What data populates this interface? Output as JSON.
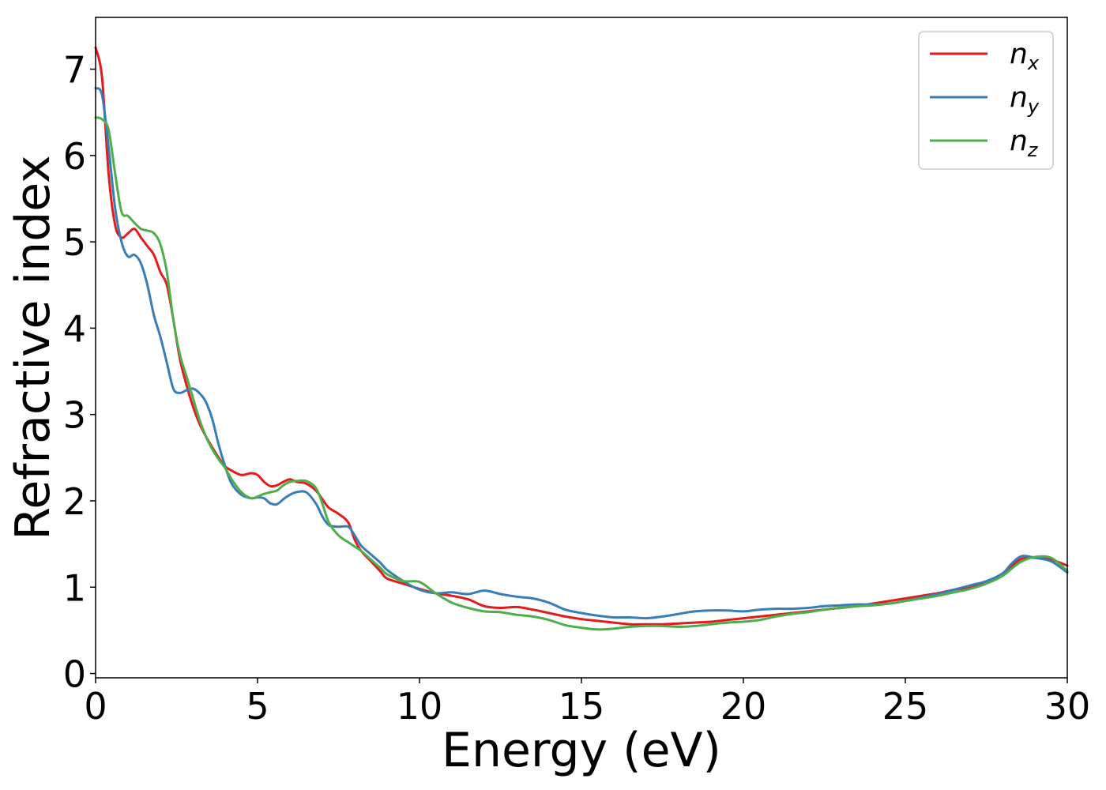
{
  "chart_data": {
    "type": "line",
    "title": "",
    "xlabel": "Energy (eV)",
    "ylabel": "Refractive index",
    "xlim": [
      0,
      30
    ],
    "ylim": [
      -0.05,
      7.6
    ],
    "xticks": [
      0,
      5,
      10,
      15,
      20,
      25,
      30
    ],
    "yticks": [
      0,
      1,
      2,
      3,
      4,
      5,
      6,
      7
    ],
    "grid": false,
    "legend_position": "top-right",
    "series": [
      {
        "name": "n",
        "subscript": "x",
        "color": "#e41a1c",
        "points": [
          [
            0,
            7.25
          ],
          [
            0.2,
            6.9
          ],
          [
            0.4,
            5.8
          ],
          [
            0.6,
            5.2
          ],
          [
            0.8,
            5.05
          ],
          [
            1.0,
            5.1
          ],
          [
            1.2,
            5.15
          ],
          [
            1.4,
            5.05
          ],
          [
            1.6,
            4.95
          ],
          [
            1.8,
            4.85
          ],
          [
            2.0,
            4.65
          ],
          [
            2.2,
            4.5
          ],
          [
            2.4,
            4.1
          ],
          [
            2.6,
            3.65
          ],
          [
            2.8,
            3.35
          ],
          [
            3.0,
            3.1
          ],
          [
            3.2,
            2.9
          ],
          [
            3.4,
            2.75
          ],
          [
            3.6,
            2.62
          ],
          [
            3.8,
            2.5
          ],
          [
            4.0,
            2.4
          ],
          [
            4.2,
            2.35
          ],
          [
            4.5,
            2.3
          ],
          [
            4.8,
            2.32
          ],
          [
            5.0,
            2.3
          ],
          [
            5.2,
            2.22
          ],
          [
            5.4,
            2.17
          ],
          [
            5.6,
            2.18
          ],
          [
            5.8,
            2.22
          ],
          [
            6.0,
            2.25
          ],
          [
            6.2,
            2.22
          ],
          [
            6.5,
            2.2
          ],
          [
            6.8,
            2.12
          ],
          [
            7.0,
            2.02
          ],
          [
            7.2,
            1.92
          ],
          [
            7.5,
            1.85
          ],
          [
            7.8,
            1.75
          ],
          [
            8.0,
            1.55
          ],
          [
            8.2,
            1.42
          ],
          [
            8.5,
            1.3
          ],
          [
            8.8,
            1.18
          ],
          [
            9.0,
            1.1
          ],
          [
            9.5,
            1.04
          ],
          [
            10.0,
            0.98
          ],
          [
            10.5,
            0.93
          ],
          [
            11.0,
            0.9
          ],
          [
            11.5,
            0.86
          ],
          [
            12.0,
            0.78
          ],
          [
            12.5,
            0.76
          ],
          [
            13.0,
            0.77
          ],
          [
            13.5,
            0.74
          ],
          [
            14.0,
            0.7
          ],
          [
            14.5,
            0.66
          ],
          [
            15.0,
            0.63
          ],
          [
            15.5,
            0.61
          ],
          [
            16.0,
            0.59
          ],
          [
            16.5,
            0.57
          ],
          [
            17.0,
            0.57
          ],
          [
            17.5,
            0.57
          ],
          [
            18.0,
            0.58
          ],
          [
            18.5,
            0.59
          ],
          [
            19.0,
            0.6
          ],
          [
            19.5,
            0.62
          ],
          [
            20.0,
            0.64
          ],
          [
            20.5,
            0.66
          ],
          [
            21.0,
            0.68
          ],
          [
            21.5,
            0.7
          ],
          [
            22.0,
            0.72
          ],
          [
            22.5,
            0.74
          ],
          [
            23.0,
            0.76
          ],
          [
            23.5,
            0.78
          ],
          [
            24.0,
            0.81
          ],
          [
            24.5,
            0.84
          ],
          [
            25.0,
            0.87
          ],
          [
            25.5,
            0.9
          ],
          [
            26.0,
            0.93
          ],
          [
            26.5,
            0.97
          ],
          [
            27.0,
            1.0
          ],
          [
            27.5,
            1.05
          ],
          [
            28.0,
            1.15
          ],
          [
            28.3,
            1.25
          ],
          [
            28.6,
            1.33
          ],
          [
            29.0,
            1.34
          ],
          [
            29.5,
            1.32
          ],
          [
            30.0,
            1.25
          ]
        ]
      },
      {
        "name": "n",
        "subscript": "y",
        "color": "#377eb8",
        "points": [
          [
            0,
            6.78
          ],
          [
            0.2,
            6.7
          ],
          [
            0.4,
            6.1
          ],
          [
            0.6,
            5.4
          ],
          [
            0.8,
            5.0
          ],
          [
            1.0,
            4.83
          ],
          [
            1.2,
            4.85
          ],
          [
            1.4,
            4.75
          ],
          [
            1.6,
            4.5
          ],
          [
            1.8,
            4.15
          ],
          [
            2.0,
            3.9
          ],
          [
            2.2,
            3.6
          ],
          [
            2.4,
            3.3
          ],
          [
            2.6,
            3.25
          ],
          [
            2.8,
            3.28
          ],
          [
            3.0,
            3.3
          ],
          [
            3.2,
            3.25
          ],
          [
            3.4,
            3.15
          ],
          [
            3.6,
            2.95
          ],
          [
            3.8,
            2.65
          ],
          [
            4.0,
            2.4
          ],
          [
            4.2,
            2.2
          ],
          [
            4.5,
            2.07
          ],
          [
            4.8,
            2.03
          ],
          [
            5.0,
            2.04
          ],
          [
            5.2,
            2.03
          ],
          [
            5.4,
            1.97
          ],
          [
            5.6,
            1.96
          ],
          [
            5.8,
            2.02
          ],
          [
            6.0,
            2.07
          ],
          [
            6.2,
            2.1
          ],
          [
            6.5,
            2.1
          ],
          [
            6.8,
            1.97
          ],
          [
            7.0,
            1.82
          ],
          [
            7.2,
            1.72
          ],
          [
            7.5,
            1.7
          ],
          [
            7.8,
            1.7
          ],
          [
            8.0,
            1.6
          ],
          [
            8.2,
            1.48
          ],
          [
            8.5,
            1.38
          ],
          [
            8.8,
            1.28
          ],
          [
            9.0,
            1.2
          ],
          [
            9.5,
            1.07
          ],
          [
            10.0,
            0.97
          ],
          [
            10.5,
            0.93
          ],
          [
            11.0,
            0.94
          ],
          [
            11.5,
            0.92
          ],
          [
            12.0,
            0.96
          ],
          [
            12.5,
            0.92
          ],
          [
            13.0,
            0.89
          ],
          [
            13.5,
            0.87
          ],
          [
            14.0,
            0.82
          ],
          [
            14.5,
            0.74
          ],
          [
            15.0,
            0.7
          ],
          [
            15.5,
            0.67
          ],
          [
            16.0,
            0.65
          ],
          [
            16.5,
            0.65
          ],
          [
            17.0,
            0.64
          ],
          [
            17.5,
            0.66
          ],
          [
            18.0,
            0.69
          ],
          [
            18.5,
            0.72
          ],
          [
            19.0,
            0.73
          ],
          [
            19.5,
            0.73
          ],
          [
            20.0,
            0.72
          ],
          [
            20.5,
            0.74
          ],
          [
            21.0,
            0.75
          ],
          [
            21.5,
            0.75
          ],
          [
            22.0,
            0.76
          ],
          [
            22.5,
            0.78
          ],
          [
            23.0,
            0.79
          ],
          [
            23.5,
            0.8
          ],
          [
            24.0,
            0.8
          ],
          [
            24.5,
            0.81
          ],
          [
            25.0,
            0.84
          ],
          [
            25.5,
            0.88
          ],
          [
            26.0,
            0.92
          ],
          [
            26.5,
            0.97
          ],
          [
            27.0,
            1.02
          ],
          [
            27.5,
            1.07
          ],
          [
            28.0,
            1.16
          ],
          [
            28.3,
            1.28
          ],
          [
            28.6,
            1.36
          ],
          [
            29.0,
            1.34
          ],
          [
            29.5,
            1.3
          ],
          [
            30.0,
            1.17
          ]
        ]
      },
      {
        "name": "n",
        "subscript": "z",
        "color": "#4daf4a",
        "points": [
          [
            0,
            6.44
          ],
          [
            0.2,
            6.42
          ],
          [
            0.4,
            6.3
          ],
          [
            0.6,
            5.8
          ],
          [
            0.8,
            5.35
          ],
          [
            1.0,
            5.3
          ],
          [
            1.2,
            5.22
          ],
          [
            1.4,
            5.15
          ],
          [
            1.6,
            5.13
          ],
          [
            1.8,
            5.1
          ],
          [
            2.0,
            4.97
          ],
          [
            2.2,
            4.65
          ],
          [
            2.4,
            4.1
          ],
          [
            2.6,
            3.7
          ],
          [
            2.8,
            3.45
          ],
          [
            3.0,
            3.2
          ],
          [
            3.2,
            2.95
          ],
          [
            3.4,
            2.75
          ],
          [
            3.6,
            2.6
          ],
          [
            3.8,
            2.48
          ],
          [
            4.0,
            2.38
          ],
          [
            4.2,
            2.25
          ],
          [
            4.5,
            2.1
          ],
          [
            4.8,
            2.03
          ],
          [
            5.0,
            2.05
          ],
          [
            5.2,
            2.08
          ],
          [
            5.4,
            2.1
          ],
          [
            5.6,
            2.12
          ],
          [
            5.8,
            2.18
          ],
          [
            6.0,
            2.22
          ],
          [
            6.2,
            2.23
          ],
          [
            6.5,
            2.23
          ],
          [
            6.8,
            2.15
          ],
          [
            7.0,
            1.97
          ],
          [
            7.2,
            1.75
          ],
          [
            7.5,
            1.6
          ],
          [
            7.8,
            1.52
          ],
          [
            8.0,
            1.47
          ],
          [
            8.2,
            1.42
          ],
          [
            8.5,
            1.32
          ],
          [
            8.8,
            1.22
          ],
          [
            9.0,
            1.15
          ],
          [
            9.5,
            1.07
          ],
          [
            10.0,
            1.06
          ],
          [
            10.5,
            0.93
          ],
          [
            11.0,
            0.82
          ],
          [
            11.5,
            0.76
          ],
          [
            12.0,
            0.72
          ],
          [
            12.5,
            0.71
          ],
          [
            13.0,
            0.68
          ],
          [
            13.5,
            0.66
          ],
          [
            14.0,
            0.62
          ],
          [
            14.5,
            0.56
          ],
          [
            15.0,
            0.53
          ],
          [
            15.5,
            0.51
          ],
          [
            16.0,
            0.52
          ],
          [
            16.5,
            0.54
          ],
          [
            17.0,
            0.55
          ],
          [
            17.5,
            0.55
          ],
          [
            18.0,
            0.54
          ],
          [
            18.5,
            0.55
          ],
          [
            19.0,
            0.57
          ],
          [
            19.5,
            0.59
          ],
          [
            20.0,
            0.6
          ],
          [
            20.5,
            0.62
          ],
          [
            21.0,
            0.66
          ],
          [
            21.5,
            0.69
          ],
          [
            22.0,
            0.71
          ],
          [
            22.5,
            0.74
          ],
          [
            23.0,
            0.76
          ],
          [
            23.5,
            0.78
          ],
          [
            24.0,
            0.79
          ],
          [
            24.5,
            0.81
          ],
          [
            25.0,
            0.84
          ],
          [
            25.5,
            0.87
          ],
          [
            26.0,
            0.9
          ],
          [
            26.5,
            0.94
          ],
          [
            27.0,
            0.98
          ],
          [
            27.5,
            1.04
          ],
          [
            28.0,
            1.13
          ],
          [
            28.3,
            1.22
          ],
          [
            28.6,
            1.3
          ],
          [
            29.0,
            1.35
          ],
          [
            29.5,
            1.34
          ],
          [
            30.0,
            1.19
          ]
        ]
      }
    ]
  }
}
